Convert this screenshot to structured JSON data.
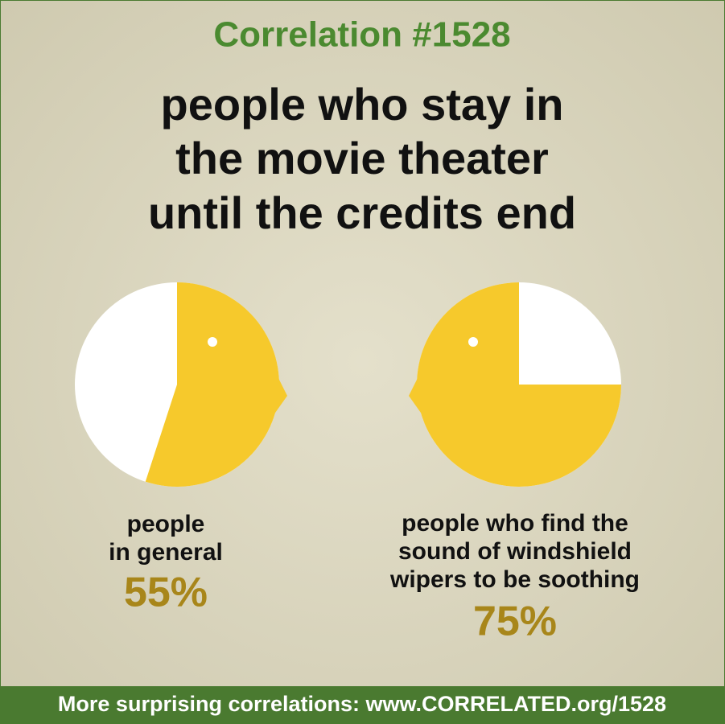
{
  "title": "Correlation #1528",
  "subtitle": [
    "people who stay in",
    "the movie theater",
    "until the credits end"
  ],
  "footer": "More surprising correlations: www.CORRELATED.org/1528",
  "chart_data": [
    {
      "type": "pie",
      "label": [
        "people",
        "in general"
      ],
      "values": [
        55
      ],
      "value_labels": [
        "55%"
      ],
      "color": "#f6c92c",
      "startangle": 0
    },
    {
      "type": "pie",
      "label": [
        "people who find the",
        "sound of windshield",
        "wipers to be soothing"
      ],
      "values": [
        75
      ],
      "value_labels": [
        "75%"
      ],
      "color": "#f6c92c",
      "startangle": 90
    }
  ]
}
